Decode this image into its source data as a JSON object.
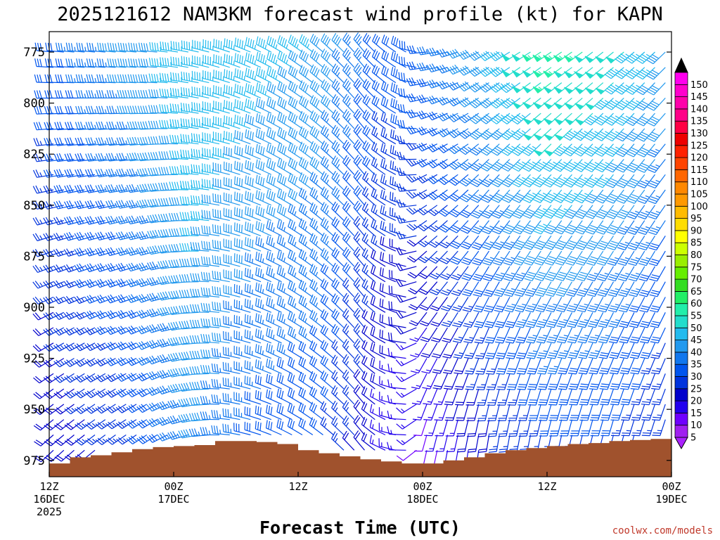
{
  "chart_data": {
    "type": "wind-barb-time-height",
    "title": "2025121612 NAM3KM forecast wind profile (kt) for KAPN",
    "xlabel": "Forecast Time (UTC)",
    "ylabel": "",
    "credit": "coolwx.com/models",
    "y_axis": {
      "ticks": [
        775,
        800,
        825,
        850,
        875,
        900,
        925,
        950,
        975
      ],
      "range_hpa": [
        765,
        983
      ]
    },
    "x_axis": {
      "range_hours": [
        0,
        60
      ],
      "ticks": [
        {
          "hour": 0,
          "line1": "12Z",
          "line2": "16DEC",
          "line3": "2025"
        },
        {
          "hour": 12,
          "line1": "00Z",
          "line2": "17DEC",
          "line3": ""
        },
        {
          "hour": 24,
          "line1": "12Z",
          "line2": "",
          "line3": ""
        },
        {
          "hour": 36,
          "line1": "00Z",
          "line2": "18DEC",
          "line3": ""
        },
        {
          "hour": 48,
          "line1": "12Z",
          "line2": "",
          "line3": ""
        },
        {
          "hour": 60,
          "line1": "00Z",
          "line2": "19DEC",
          "line3": ""
        }
      ]
    },
    "barb_levels_hpa": [
      775,
      782.5,
      790,
      797.5,
      805,
      812.5,
      820,
      827.5,
      835,
      842.5,
      850,
      857.5,
      865,
      872.5,
      880,
      887.5,
      895,
      902.5,
      910,
      917.5,
      925,
      932.5,
      940,
      947.5,
      955,
      962.5,
      970,
      977.5
    ],
    "wind_direction_keyframes": [
      {
        "hour": 0,
        "low_deg": 225,
        "high_deg": 275
      },
      {
        "hour": 10,
        "low_deg": 235,
        "high_deg": 275
      },
      {
        "hour": 18,
        "low_deg": 280,
        "high_deg": 290
      },
      {
        "hour": 24,
        "low_deg": 300,
        "high_deg": 305
      },
      {
        "hour": 30,
        "low_deg": 320,
        "high_deg": 320
      },
      {
        "hour": 34,
        "low_deg": 270,
        "high_deg": 300
      },
      {
        "hour": 36,
        "low_deg": 190,
        "high_deg": 265
      },
      {
        "hour": 42,
        "low_deg": 185,
        "high_deg": 240
      },
      {
        "hour": 50,
        "low_deg": 190,
        "high_deg": 235
      },
      {
        "hour": 60,
        "low_deg": 195,
        "high_deg": 225
      }
    ],
    "wind_speed_keyframes": [
      {
        "hour": 0,
        "low_kt": 18,
        "high_kt": 30
      },
      {
        "hour": 8,
        "low_kt": 25,
        "high_kt": 40
      },
      {
        "hour": 14,
        "low_kt": 38,
        "high_kt": 47
      },
      {
        "hour": 20,
        "low_kt": 30,
        "high_kt": 45
      },
      {
        "hour": 26,
        "low_kt": 28,
        "high_kt": 42
      },
      {
        "hour": 32,
        "low_kt": 15,
        "high_kt": 30
      },
      {
        "hour": 36,
        "low_kt": 10,
        "high_kt": 32
      },
      {
        "hour": 42,
        "low_kt": 20,
        "high_kt": 42
      },
      {
        "hour": 48,
        "low_kt": 25,
        "high_kt": 55
      },
      {
        "hour": 54,
        "low_kt": 25,
        "high_kt": 50
      },
      {
        "hour": 60,
        "low_kt": 20,
        "high_kt": 40
      }
    ],
    "surface_pressure_hpa": [
      {
        "hour": 0,
        "p": 976.5
      },
      {
        "hour": 2,
        "p": 973.5
      },
      {
        "hour": 4,
        "p": 972.5
      },
      {
        "hour": 6,
        "p": 971
      },
      {
        "hour": 8,
        "p": 969.5
      },
      {
        "hour": 10,
        "p": 968.5
      },
      {
        "hour": 12,
        "p": 968
      },
      {
        "hour": 14,
        "p": 967.5
      },
      {
        "hour": 16,
        "p": 965.5
      },
      {
        "hour": 18,
        "p": 965.5
      },
      {
        "hour": 20,
        "p": 966
      },
      {
        "hour": 22,
        "p": 967
      },
      {
        "hour": 24,
        "p": 970
      },
      {
        "hour": 26,
        "p": 971.5
      },
      {
        "hour": 28,
        "p": 973
      },
      {
        "hour": 30,
        "p": 974.5
      },
      {
        "hour": 32,
        "p": 975.5
      },
      {
        "hour": 34,
        "p": 976.5
      },
      {
        "hour": 36,
        "p": 976.5
      },
      {
        "hour": 38,
        "p": 975
      },
      {
        "hour": 40,
        "p": 973.5
      },
      {
        "hour": 42,
        "p": 971.5
      },
      {
        "hour": 44,
        "p": 970
      },
      {
        "hour": 46,
        "p": 969
      },
      {
        "hour": 48,
        "p": 968
      },
      {
        "hour": 50,
        "p": 967
      },
      {
        "hour": 52,
        "p": 966.5
      },
      {
        "hour": 54,
        "p": 965.5
      },
      {
        "hour": 56,
        "p": 965
      },
      {
        "hour": 58,
        "p": 964.5
      },
      {
        "hour": 60,
        "p": 964.5
      }
    ],
    "colorbar": {
      "labels": [
        5,
        10,
        15,
        20,
        25,
        30,
        35,
        40,
        45,
        50,
        55,
        60,
        65,
        70,
        75,
        80,
        85,
        90,
        95,
        100,
        105,
        110,
        115,
        120,
        125,
        130,
        135,
        140,
        145,
        150
      ],
      "colors": [
        "#a020f0",
        "#6f00ff",
        "#2200ee",
        "#0000cc",
        "#0033dd",
        "#0055ee",
        "#1177ee",
        "#2299ee",
        "#22bbee",
        "#22ddcc",
        "#22eeaa",
        "#22ee66",
        "#33dd22",
        "#66ee00",
        "#99ee00",
        "#ccff00",
        "#ffff00",
        "#ffdd00",
        "#ffbb00",
        "#ff9900",
        "#ff8800",
        "#ff6600",
        "#ff4400",
        "#ff2200",
        "#ee0000",
        "#ff0044",
        "#ff0088",
        "#ff00aa",
        "#ff00cc",
        "#ff00ee"
      ],
      "arrow_top_color": "#000000",
      "arrow_bottom_color": "#aa22ff"
    },
    "terrain_color": "#a0522d"
  }
}
